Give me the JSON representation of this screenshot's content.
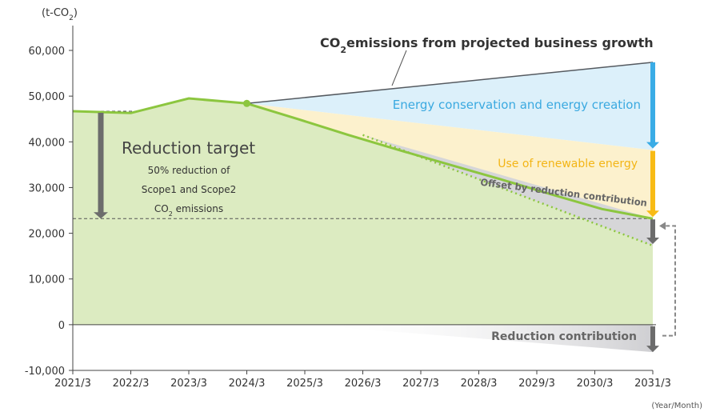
{
  "chart_data": {
    "type": "area",
    "y_unit_prefix": "(t-CO",
    "y_unit_sub": "2",
    "y_unit_suffix": ")",
    "x_unit": "(Year/Month)",
    "categories": [
      "2021/3",
      "2022/3",
      "2023/3",
      "2024/3",
      "2025/3",
      "2026/3",
      "2027/3",
      "2028/3",
      "2029/3",
      "2030/3",
      "2031/3"
    ],
    "ylim": [
      -10000,
      65000
    ],
    "yticks": [
      -10000,
      0,
      10000,
      20000,
      30000,
      40000,
      50000,
      60000
    ],
    "ytick_labels": [
      "-10,000",
      "0",
      "10,000",
      "20,000",
      "30,000",
      "40,000",
      "50,000",
      "60,000"
    ],
    "grid": false,
    "actual_emissions": [
      46700,
      46300,
      49500,
      48400
    ],
    "target_path": [
      48400,
      45000,
      41500,
      38200,
      35000,
      31800,
      28500,
      25300,
      23200
    ],
    "bau_path": [
      48400,
      57400
    ],
    "after_conservation": [
      48400,
      38200
    ],
    "offset_path": [
      41500,
      17300
    ],
    "reduction_target_level": 23200,
    "baseline_level": 46700,
    "reduction_contribution_end": -6000,
    "colors": {
      "actual_fill": "#dcebc1",
      "line_green": "#8cc63f",
      "bau_line": "#555a60",
      "conservation_fill": "#dcf0fa",
      "renewable_fill": "#fcf1cd",
      "offset_fill": "#d6d6d8",
      "arrow_blue": "#3aace6",
      "arrow_yellow": "#f8bb15",
      "arrow_gray": "#6c6c6c",
      "label_blue": "#3aa9e0",
      "label_yellow": "#f3b516",
      "label_gray": "#666666",
      "text_dark": "#333333",
      "axis": "#444444"
    },
    "annotations": {
      "bau_prefix": "CO",
      "bau_sub": "2",
      "bau_suffix": "emissions from projected business growth",
      "conservation": "Energy conservation and energy creation",
      "renewable": "Use of renewable energy",
      "offset": "Offset by reduction contribution",
      "contribution": "Reduction contribution",
      "target_title": "Reduction target",
      "target_line1": "50% reduction of",
      "target_line2": "Scope1 and Scope2",
      "target_line3_prefix": "CO",
      "target_line3_sub": "2",
      "target_line3_suffix": " emissions"
    }
  }
}
